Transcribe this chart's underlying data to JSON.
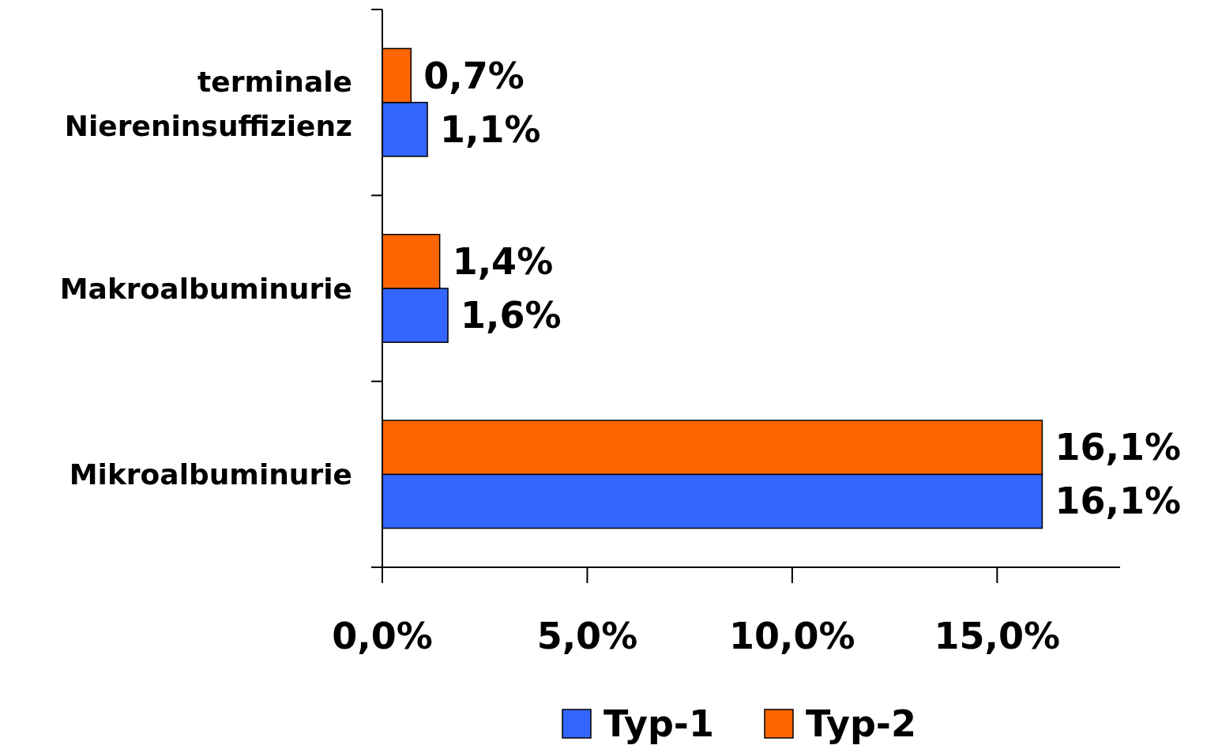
{
  "chart_data": {
    "type": "bar",
    "orientation": "horizontal",
    "categories": [
      "terminale Niereninsuffizienz",
      "Makroalbuminurie",
      "Mikroalbuminurie"
    ],
    "series": [
      {
        "name": "Typ-1",
        "color": "#3366ff",
        "values": [
          1.1,
          1.6,
          16.1
        ],
        "value_labels": [
          "1,1%",
          "1,6%",
          "16,1%"
        ]
      },
      {
        "name": "Typ-2",
        "color": "#ff6600",
        "values": [
          0.7,
          1.4,
          16.1
        ],
        "value_labels": [
          "0,7%",
          "1,4%",
          "16,1%"
        ]
      }
    ],
    "xlim": [
      0,
      18
    ],
    "xticks": [
      {
        "value": 0,
        "label": "0,0%"
      },
      {
        "value": 5,
        "label": "5,0%"
      },
      {
        "value": 10,
        "label": "10,0%"
      },
      {
        "value": 15,
        "label": "15,0%"
      }
    ],
    "grid": false,
    "legend": "bottom"
  }
}
